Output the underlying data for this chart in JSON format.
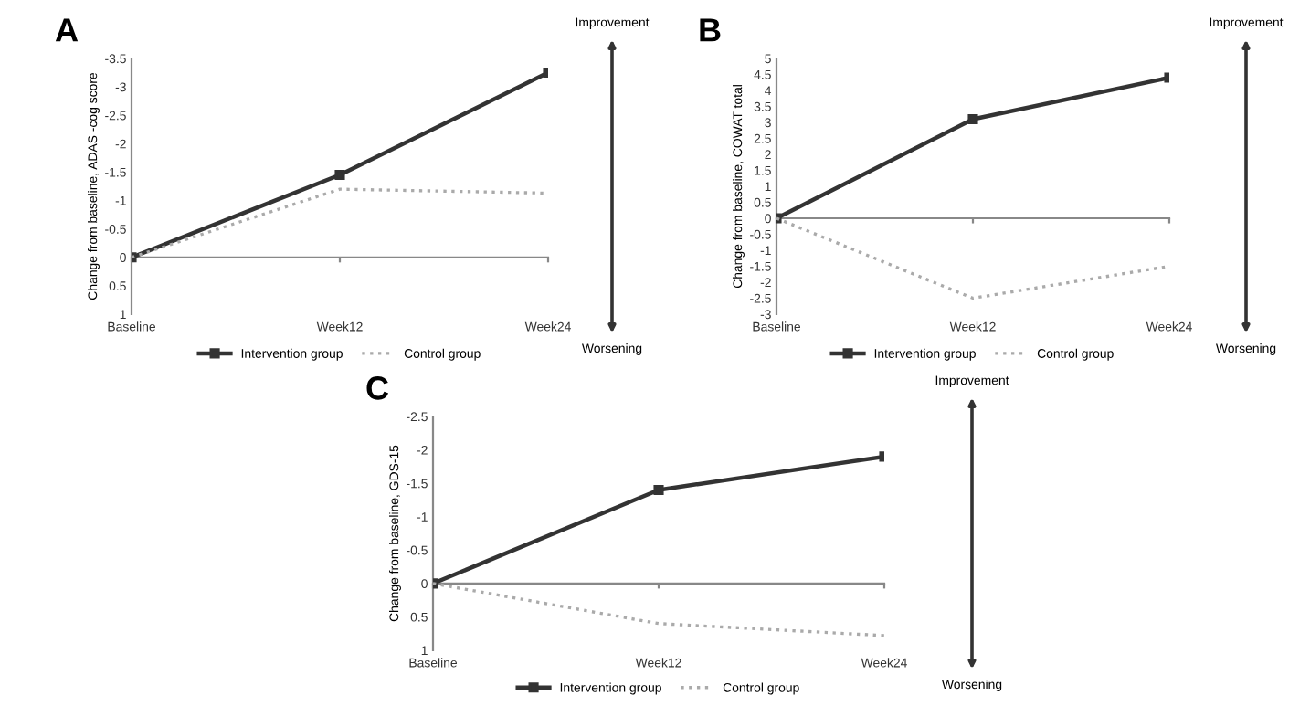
{
  "chart_data": [
    {
      "type": "line",
      "title": "A",
      "ylabel": "Change from baseline, ADAS -cog score",
      "categories": [
        "Baseline",
        "Week12",
        "Week24"
      ],
      "ylim": [
        1,
        -3.5
      ],
      "yticks": [
        -3.5,
        -3,
        -2.5,
        -2,
        -1.5,
        -1,
        -0.5,
        0,
        0.5,
        1
      ],
      "legend": "bottom",
      "annotations": [
        "Improvement",
        "Worsening"
      ],
      "series": [
        {
          "name": "Intervention group",
          "color": "#333333",
          "marker": "square",
          "line_style": "solid",
          "values": [
            0,
            -1.45,
            -3.25
          ]
        },
        {
          "name": "Control group",
          "color": "#aaaaaa",
          "marker": "none",
          "line_style": "dotted",
          "values": [
            0,
            -1.2,
            -1.13
          ]
        }
      ]
    },
    {
      "type": "line",
      "title": "B",
      "ylabel": "Change from baseline, COWAT total",
      "categories": [
        "Baseline",
        "Week12",
        "Week24"
      ],
      "ylim": [
        -3,
        5
      ],
      "yticks": [
        -3,
        -2.5,
        -2,
        -1.5,
        -1,
        -0.5,
        0,
        0.5,
        1,
        1.5,
        2,
        2.5,
        3,
        3.5,
        4,
        4.5,
        5
      ],
      "legend": "bottom",
      "annotations": [
        "Improvement",
        "Worsening"
      ],
      "series": [
        {
          "name": "Intervention group",
          "color": "#333333",
          "marker": "square",
          "line_style": "solid",
          "values": [
            0,
            3.1,
            4.4
          ]
        },
        {
          "name": "Control group",
          "color": "#aaaaaa",
          "marker": "none",
          "line_style": "dotted",
          "values": [
            0,
            -2.5,
            -1.5
          ]
        }
      ]
    },
    {
      "type": "line",
      "title": "C",
      "ylabel": "Change from baseline, GDS-15",
      "categories": [
        "Baseline",
        "Week12",
        "Week24"
      ],
      "ylim": [
        1,
        -2.5
      ],
      "yticks": [
        -2.5,
        -2,
        -1.5,
        -1,
        -0.5,
        0,
        0.5,
        1
      ],
      "legend": "bottom",
      "annotations": [
        "Improvement",
        "Worsening"
      ],
      "series": [
        {
          "name": "Intervention group",
          "color": "#333333",
          "marker": "square",
          "line_style": "solid",
          "values": [
            0,
            -1.4,
            -1.9
          ]
        },
        {
          "name": "Control group",
          "color": "#aaaaaa",
          "marker": "none",
          "line_style": "dotted",
          "values": [
            0,
            0.6,
            0.78
          ]
        }
      ]
    }
  ]
}
